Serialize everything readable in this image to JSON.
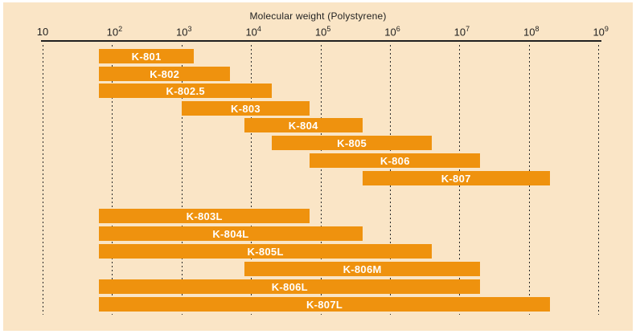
{
  "chart_data": {
    "type": "bar",
    "orientation": "horizontal-range",
    "title": "Molecular weight (Polystyrene)",
    "x_scale": "log",
    "xlim": [
      10,
      1000000000
    ],
    "grid": "dotted-vertical-per-decade",
    "x_tick_values": [
      10,
      100,
      1000,
      10000,
      100000,
      1000000,
      10000000,
      100000000,
      1000000000
    ],
    "x_ticks": [
      {
        "text": "10",
        "sup": ""
      },
      {
        "text": "10",
        "sup": "2"
      },
      {
        "text": "10",
        "sup": "3"
      },
      {
        "text": "10",
        "sup": "4"
      },
      {
        "text": "10",
        "sup": "5"
      },
      {
        "text": "10",
        "sup": "6"
      },
      {
        "text": "10",
        "sup": "7"
      },
      {
        "text": "10",
        "sup": "8"
      },
      {
        "text": "10",
        "sup": "9"
      }
    ],
    "bars": [
      {
        "label": "K-801",
        "mw_min": 65,
        "mw_max": 1500,
        "group": 1
      },
      {
        "label": "K-802",
        "mw_min": 65,
        "mw_max": 5000,
        "group": 1
      },
      {
        "label": "K-802.5",
        "mw_min": 65,
        "mw_max": 20000,
        "group": 1
      },
      {
        "label": "K-803",
        "mw_min": 1000,
        "mw_max": 70000,
        "group": 1
      },
      {
        "label": "K-804",
        "mw_min": 8000,
        "mw_max": 400000,
        "group": 1
      },
      {
        "label": "K-805",
        "mw_min": 20000,
        "mw_max": 4000000,
        "group": 1
      },
      {
        "label": "K-806",
        "mw_min": 70000,
        "mw_max": 20000000,
        "group": 1
      },
      {
        "label": "K-807",
        "mw_min": 400000,
        "mw_max": 200000000,
        "group": 1
      },
      {
        "label": "K-803L",
        "mw_min": 65,
        "mw_max": 70000,
        "group": 2
      },
      {
        "label": "K-804L",
        "mw_min": 65,
        "mw_max": 400000,
        "group": 2
      },
      {
        "label": "K-805L",
        "mw_min": 65,
        "mw_max": 4000000,
        "group": 2
      },
      {
        "label": "K-806M",
        "mw_min": 8000,
        "mw_max": 20000000,
        "group": 2
      },
      {
        "label": "K-806L",
        "mw_min": 65,
        "mw_max": 20000000,
        "group": 2
      },
      {
        "label": "K-807L",
        "mw_min": 65,
        "mw_max": 200000000,
        "group": 2
      }
    ],
    "colors": {
      "bar": "#ef920e",
      "panel_background": "#fae5c6",
      "frame_background": "#ffffff",
      "axis_text": "#1f1f1f",
      "bar_label_text": "#ffffff"
    }
  }
}
